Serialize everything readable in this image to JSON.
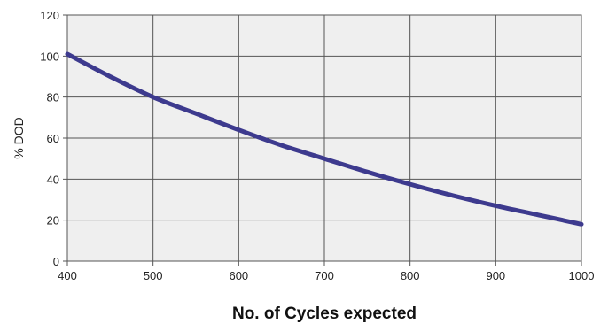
{
  "chart_data": {
    "type": "line",
    "title": "",
    "xlabel": "No. of Cycles expected",
    "ylabel": "% DOD",
    "xlim": [
      400,
      1000
    ],
    "ylim": [
      0,
      120
    ],
    "xticks": [
      "400",
      "500",
      "600",
      "700",
      "800",
      "900",
      "1000"
    ],
    "yticks": [
      "0",
      "20",
      "40",
      "60",
      "80",
      "100",
      "120"
    ],
    "grid": true,
    "legend": "none",
    "colors": {
      "line": "#3d3a8e",
      "plot_background": "#efefef",
      "grid": "#555555"
    },
    "series": [
      {
        "x": [
          400,
          450,
          500,
          550,
          600,
          650,
          700,
          750,
          800,
          850,
          900,
          950,
          1000
        ],
        "y": [
          101,
          90,
          80,
          72,
          64,
          56.5,
          50,
          43.5,
          37.5,
          32,
          27,
          22.5,
          18
        ]
      }
    ]
  }
}
